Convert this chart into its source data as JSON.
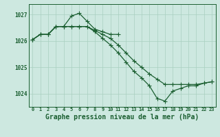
{
  "background_color": "#cde8e0",
  "grid_color": "#a8cfc0",
  "line_color": "#1a5e30",
  "title": "Graphe pression niveau de la mer (hPa)",
  "title_fontsize": 7.0,
  "x_ticks": [
    0,
    1,
    2,
    3,
    4,
    5,
    6,
    7,
    8,
    9,
    10,
    11,
    12,
    13,
    14,
    15,
    16,
    17,
    18,
    19,
    20,
    21,
    22,
    23
  ],
  "ylim": [
    1023.5,
    1027.4
  ],
  "yticks": [
    1024,
    1025,
    1026,
    1027
  ],
  "line1_x": [
    0,
    1,
    2,
    3,
    4,
    5,
    6,
    7,
    8,
    9,
    10,
    11
  ],
  "line1_y": [
    1026.05,
    1026.25,
    1026.25,
    1026.55,
    1026.55,
    1026.95,
    1027.05,
    1026.75,
    1026.45,
    1026.35,
    1026.25,
    1026.25
  ],
  "line2_x": [
    0,
    1,
    2,
    3,
    4,
    5,
    6,
    7,
    8,
    9,
    10,
    11,
    12,
    13,
    14,
    15,
    16,
    17,
    18,
    19,
    20,
    21,
    22,
    23
  ],
  "line2_y": [
    1026.05,
    1026.25,
    1026.25,
    1026.55,
    1026.55,
    1026.55,
    1026.55,
    1026.55,
    1026.4,
    1026.25,
    1026.1,
    1025.85,
    1025.55,
    1025.25,
    1025.0,
    1024.75,
    1024.55,
    1024.35,
    1024.35,
    1024.35,
    1024.35,
    1024.35,
    1024.4,
    1024.45
  ],
  "line3_x": [
    0,
    1,
    2,
    3,
    4,
    5,
    6,
    7,
    8,
    9,
    10,
    11,
    12,
    13,
    14,
    15,
    16,
    17,
    18,
    19,
    20,
    21,
    22,
    23
  ],
  "line3_y": [
    1026.05,
    1026.25,
    1026.25,
    1026.55,
    1026.55,
    1026.55,
    1026.55,
    1026.55,
    1026.35,
    1026.1,
    1025.85,
    1025.55,
    1025.2,
    1024.85,
    1024.6,
    1024.3,
    1023.82,
    1023.72,
    1024.1,
    1024.2,
    1024.3,
    1024.3,
    1024.4,
    1024.45
  ]
}
